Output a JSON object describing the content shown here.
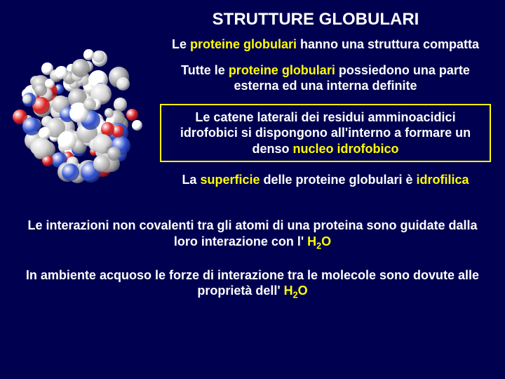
{
  "title": "STRUTTURE GLOBULARI",
  "p1_a": "Le ",
  "p1_b": "proteine globulari",
  "p1_c": " hanno una struttura compatta",
  "p2_a": "Tutte le ",
  "p2_b": "proteine globulari",
  "p2_c": " possiedono una parte esterna ed una interna definite",
  "p3_a": "Le catene laterali dei residui amminoacidici idrofobici si dispongono all'interno a formare un denso ",
  "p3_b": "nucleo idrofobico",
  "p4_a": "La ",
  "p4_b": "superficie",
  "p4_c": " delle proteine globulari è ",
  "p4_d": "idrofilica",
  "p5_a": "Le interazioni non covalenti  tra gli atomi di una proteina sono guidate dalla loro interazione con l' ",
  "p5_b": "H",
  "p5_c": "2",
  "p5_d": "O",
  "p6_a": "In ambiente acquoso le forze di interazione tra le molecole sono dovute alle  proprietà dell' ",
  "p6_b": "H",
  "p6_c": "2",
  "p6_d": "O",
  "colors": {
    "bg": "#000050",
    "text": "#ffffff",
    "highlight": "#ffff00",
    "box_border": "#ffff00"
  },
  "molecule": {
    "sphere_colors": [
      "#d8d8d8",
      "#c0c0c0",
      "#a8a8a8",
      "#ffffff",
      "#3050d0",
      "#e02020"
    ],
    "count": 120
  }
}
